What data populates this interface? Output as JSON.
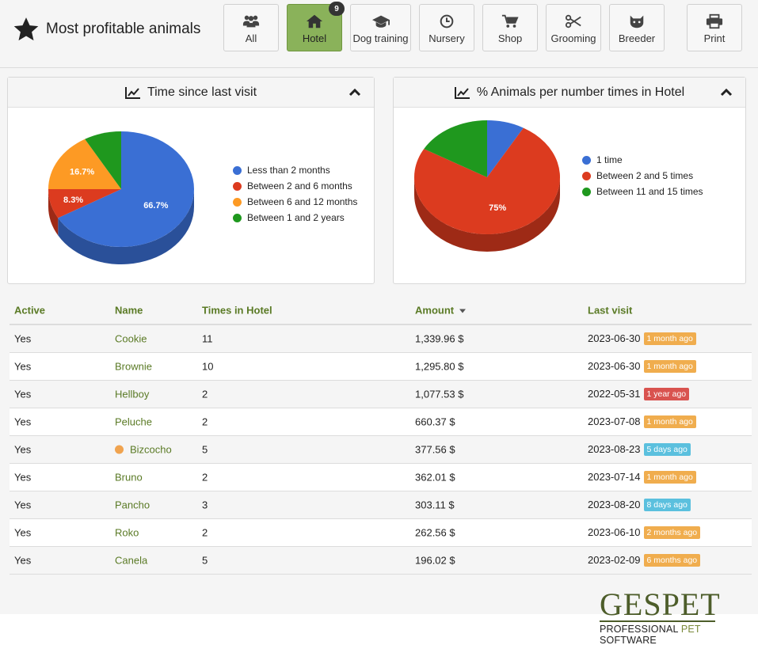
{
  "header": {
    "title": "Most profitable animals",
    "star_icon": "star-icon"
  },
  "nav": [
    {
      "id": "all",
      "label": "All",
      "icon": "users-icon"
    },
    {
      "id": "hotel",
      "label": "Hotel",
      "icon": "home-icon",
      "active": true,
      "badge": "9"
    },
    {
      "id": "dog-training",
      "label": "Dog training",
      "icon": "graduation-cap-icon"
    },
    {
      "id": "nursery",
      "label": "Nursery",
      "icon": "clock-icon"
    },
    {
      "id": "shop",
      "label": "Shop",
      "icon": "cart-icon"
    },
    {
      "id": "grooming",
      "label": "Grooming",
      "icon": "scissors-icon"
    },
    {
      "id": "breeder",
      "label": "Breeder",
      "icon": "cat-icon"
    },
    {
      "id": "print",
      "label": "Print",
      "icon": "printer-icon"
    }
  ],
  "colors": {
    "blue": "#3a6fd4",
    "red": "#dc3b1f",
    "orange": "#fd9a24",
    "green": "#1f981e",
    "accent_green": "#8ab25a",
    "link_green": "#5a7a25",
    "badge_orange": "#f0ad4e",
    "badge_red": "#d9534f",
    "badge_blue": "#5bc0de"
  },
  "chart_data": [
    {
      "type": "pie",
      "title": "Time since last visit",
      "labels": [
        "Less than 2 months",
        "Between 2 and 6 months",
        "Between 6 and 12 months",
        "Between 1 and 2 years"
      ],
      "values": [
        66.7,
        8.3,
        16.7,
        8.3
      ],
      "data_labels": [
        "66.7%",
        "8.3%",
        "16.7%",
        ""
      ],
      "legend": "right"
    },
    {
      "type": "pie",
      "title": "% Animals per number times in Hotel",
      "labels": [
        "1 time",
        "Between 2 and 5 times",
        "Between 11 and 15 times"
      ],
      "values": [
        8.3,
        75,
        16.7
      ],
      "data_labels": [
        "",
        "75%",
        ""
      ],
      "legend": "right"
    }
  ],
  "table": {
    "columns": [
      "Active",
      "Name",
      "Times in Hotel",
      "Amount",
      "Last visit"
    ],
    "rows": [
      {
        "active": "Yes",
        "name": "Cookie",
        "times": "11",
        "amount": "1,339.96 $",
        "last_visit": "2023-06-30",
        "ago": "1 month ago",
        "ago_color": "badge_orange",
        "dot": false
      },
      {
        "active": "Yes",
        "name": "Brownie",
        "times": "10",
        "amount": "1,295.80 $",
        "last_visit": "2023-06-30",
        "ago": "1 month ago",
        "ago_color": "badge_orange",
        "dot": false
      },
      {
        "active": "Yes",
        "name": "Hellboy",
        "times": "2",
        "amount": "1,077.53 $",
        "last_visit": "2022-05-31",
        "ago": "1 year ago",
        "ago_color": "badge_red",
        "dot": false
      },
      {
        "active": "Yes",
        "name": "Peluche",
        "times": "2",
        "amount": "660.37 $",
        "last_visit": "2023-07-08",
        "ago": "1 month ago",
        "ago_color": "badge_orange",
        "dot": false
      },
      {
        "active": "Yes",
        "name": "Bizcocho",
        "times": "5",
        "amount": "377.56 $",
        "last_visit": "2023-08-23",
        "ago": "5 days ago",
        "ago_color": "badge_blue",
        "dot": true
      },
      {
        "active": "Yes",
        "name": "Bruno",
        "times": "2",
        "amount": "362.01 $",
        "last_visit": "2023-07-14",
        "ago": "1 month ago",
        "ago_color": "badge_orange",
        "dot": false
      },
      {
        "active": "Yes",
        "name": "Pancho",
        "times": "3",
        "amount": "303.11 $",
        "last_visit": "2023-08-20",
        "ago": "8 days ago",
        "ago_color": "badge_blue",
        "dot": false
      },
      {
        "active": "Yes",
        "name": "Roko",
        "times": "2",
        "amount": "262.56 $",
        "last_visit": "2023-06-10",
        "ago": "2 months ago",
        "ago_color": "badge_orange",
        "dot": false
      },
      {
        "active": "Yes",
        "name": "Canela",
        "times": "5",
        "amount": "196.02 $",
        "last_visit": "2023-02-09",
        "ago": "6 months ago",
        "ago_color": "badge_orange",
        "dot": false
      }
    ]
  },
  "logo": {
    "main": "GESPET",
    "sub_prefix": "PROFESSIONAL ",
    "sub_pet": "PET",
    "sub_suffix": " SOFTWARE"
  }
}
